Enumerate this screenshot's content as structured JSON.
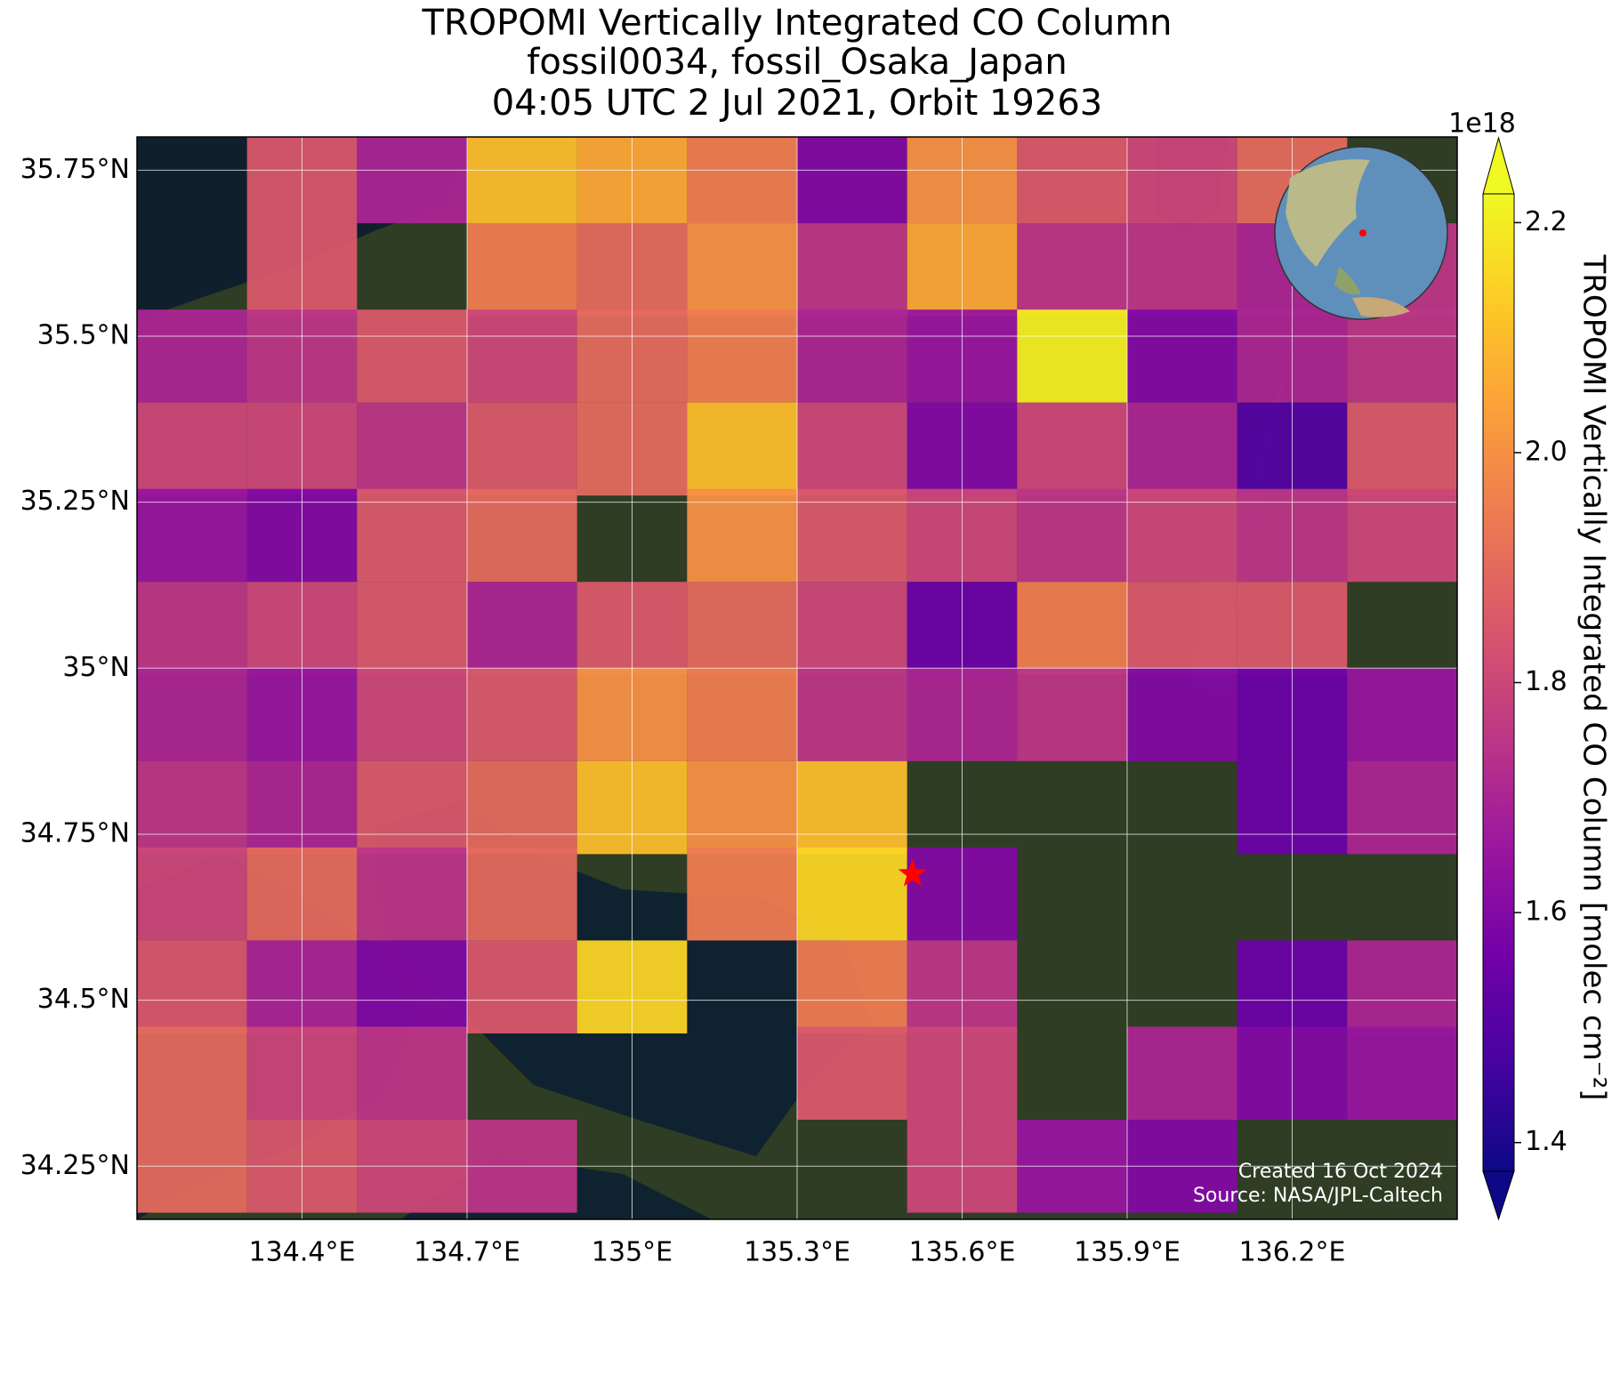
{
  "chart_data": {
    "type": "heatmap",
    "title": "TROPOMI Vertically Integrated CO Column",
    "subtitle": [
      "fossil0034, fossil_Osaka_Japan",
      "04:05 UTC 2 Jul 2021, Orbit 19263"
    ],
    "x": [
      134.2,
      134.4,
      134.6,
      134.8,
      135.0,
      135.2,
      135.4,
      135.6,
      135.8,
      136.0,
      136.2,
      136.4
    ],
    "y": [
      35.74,
      35.6,
      35.47,
      35.33,
      35.2,
      35.06,
      34.93,
      34.79,
      34.66,
      34.52,
      34.39,
      34.25
    ],
    "values": [
      [
        null,
        1.85,
        1.7,
        2.1,
        2.05,
        1.95,
        1.6,
        2.0,
        1.85,
        1.8,
        1.9,
        null
      ],
      [
        null,
        1.85,
        null,
        1.95,
        1.9,
        2.0,
        1.75,
        2.05,
        1.75,
        1.75,
        1.7,
        1.75
      ],
      [
        1.7,
        1.75,
        1.85,
        1.8,
        1.9,
        1.95,
        1.7,
        1.65,
        2.2,
        1.6,
        1.7,
        1.75
      ],
      [
        1.8,
        1.8,
        1.75,
        1.85,
        1.9,
        2.1,
        1.8,
        1.6,
        1.8,
        1.7,
        1.5,
        1.85
      ],
      [
        1.65,
        1.6,
        1.85,
        1.9,
        null,
        2.0,
        1.85,
        1.8,
        1.75,
        1.8,
        1.75,
        1.8
      ],
      [
        1.75,
        1.8,
        1.85,
        1.7,
        1.85,
        1.9,
        1.8,
        1.55,
        1.95,
        1.85,
        1.85,
        null
      ],
      [
        1.7,
        1.65,
        1.8,
        1.85,
        2.0,
        1.95,
        1.75,
        1.7,
        1.75,
        1.6,
        1.55,
        1.65
      ],
      [
        1.75,
        1.7,
        1.85,
        1.9,
        2.1,
        2.0,
        2.1,
        null,
        null,
        null,
        1.55,
        1.7
      ],
      [
        1.8,
        1.9,
        1.75,
        1.9,
        null,
        1.95,
        2.15,
        1.6,
        null,
        null,
        null,
        null
      ],
      [
        1.85,
        1.7,
        1.6,
        1.85,
        2.15,
        null,
        1.95,
        1.75,
        null,
        null,
        1.55,
        1.7
      ],
      [
        1.9,
        1.8,
        1.75,
        null,
        null,
        null,
        1.85,
        1.8,
        null,
        1.7,
        1.6,
        1.65
      ],
      [
        1.9,
        1.85,
        1.8,
        1.75,
        null,
        null,
        null,
        1.8,
        1.65,
        1.6,
        null,
        null
      ]
    ],
    "colormap": "plasma",
    "xlim": [
      134.1,
      136.5
    ],
    "ylim": [
      34.17,
      35.8
    ],
    "xticks": [
      {
        "value": 134.4,
        "label": "134.4°E"
      },
      {
        "value": 134.7,
        "label": "134.7°E"
      },
      {
        "value": 135,
        "label": "135°E"
      },
      {
        "value": 135.3,
        "label": "135.3°E"
      },
      {
        "value": 135.6,
        "label": "135.6°E"
      },
      {
        "value": 135.9,
        "label": "135.9°E"
      },
      {
        "value": 136.2,
        "label": "136.2°E"
      }
    ],
    "yticks": [
      {
        "value": 34.25,
        "label": "34.25°N"
      },
      {
        "value": 34.5,
        "label": "34.5°N"
      },
      {
        "value": 34.75,
        "label": "34.75°N"
      },
      {
        "value": 35,
        "label": "35°N"
      },
      {
        "value": 35.25,
        "label": "35.25°N"
      },
      {
        "value": 35.5,
        "label": "35.5°N"
      },
      {
        "value": 35.75,
        "label": "35.75°N"
      }
    ],
    "grid": true,
    "colorbar": {
      "label": "TROPOMI Vertically Integrated CO Column [molec cm⁻²]",
      "offset_label": "1e18",
      "lim": [
        1.375,
        2.225
      ],
      "ticks": [
        1.4,
        1.6,
        1.8,
        {
          "value": 2,
          "label": "2.0"
        },
        2.2
      ]
    },
    "site": {
      "lon": 135.51,
      "lat": 34.69,
      "color": "#ff0000"
    },
    "annotations": [
      "Created 16 Oct 2024",
      "Source: NASA/JPL-Caltech"
    ]
  }
}
